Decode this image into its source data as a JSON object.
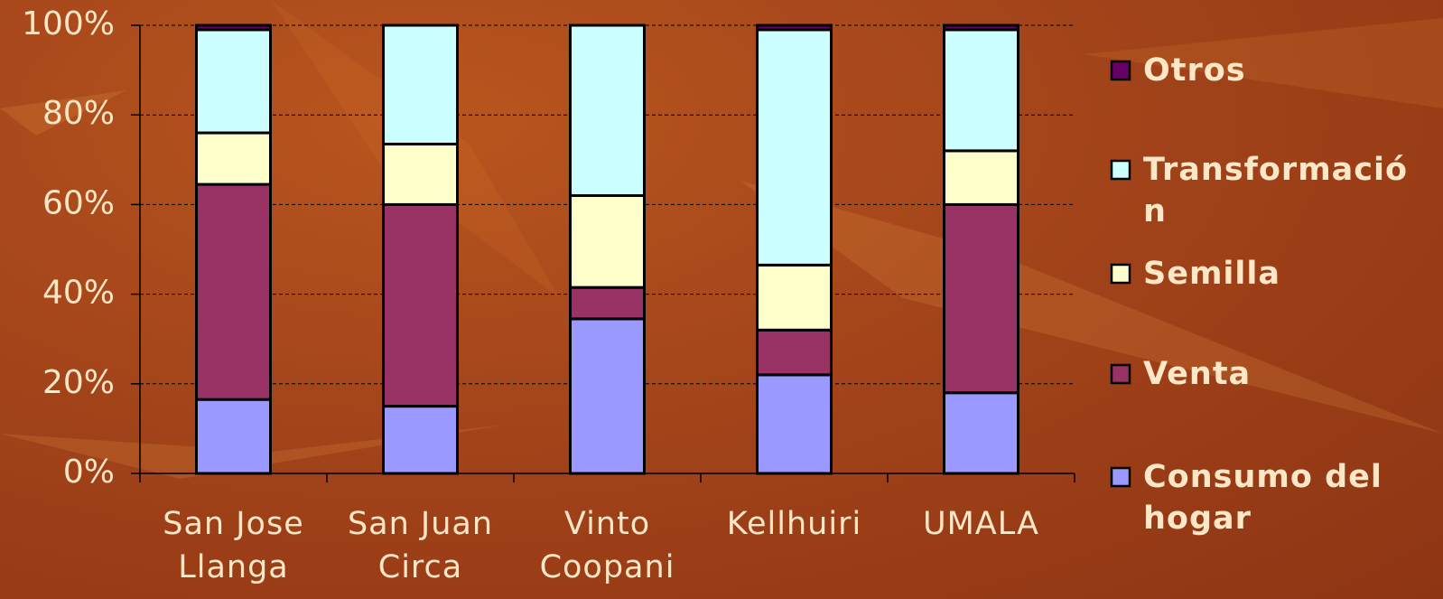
{
  "chart_data": {
    "type": "bar",
    "stacked": true,
    "categories": [
      "San Jose Llanga",
      "San Juan Circa",
      "Vinto Coopani",
      "Kellhuiri",
      "UMALA"
    ],
    "series": [
      {
        "name": "Consumo del hogar",
        "color": "#9999ff",
        "values": [
          16.5,
          15,
          34.5,
          22,
          18
        ]
      },
      {
        "name": "Venta",
        "color": "#993366",
        "values": [
          48,
          45,
          7,
          10,
          42
        ]
      },
      {
        "name": "Semilla",
        "color": "#ffffcc",
        "values": [
          11.5,
          13.5,
          20.5,
          14.5,
          12
        ]
      },
      {
        "name": "Transformación",
        "color": "#ccffff",
        "values": [
          23,
          26.5,
          38,
          52.5,
          27
        ]
      },
      {
        "name": "Otros",
        "color": "#660066",
        "values": [
          1,
          0,
          0,
          1,
          1
        ]
      }
    ],
    "ylim": [
      0,
      100
    ],
    "yticks": [
      {
        "value": 0,
        "label": "0%"
      },
      {
        "value": 20,
        "label": "20%"
      },
      {
        "value": 40,
        "label": "40%"
      },
      {
        "value": 60,
        "label": "60%"
      },
      {
        "value": 80,
        "label": "80%"
      },
      {
        "value": 100,
        "label": "100%"
      }
    ],
    "grid": true,
    "legend": "right"
  }
}
